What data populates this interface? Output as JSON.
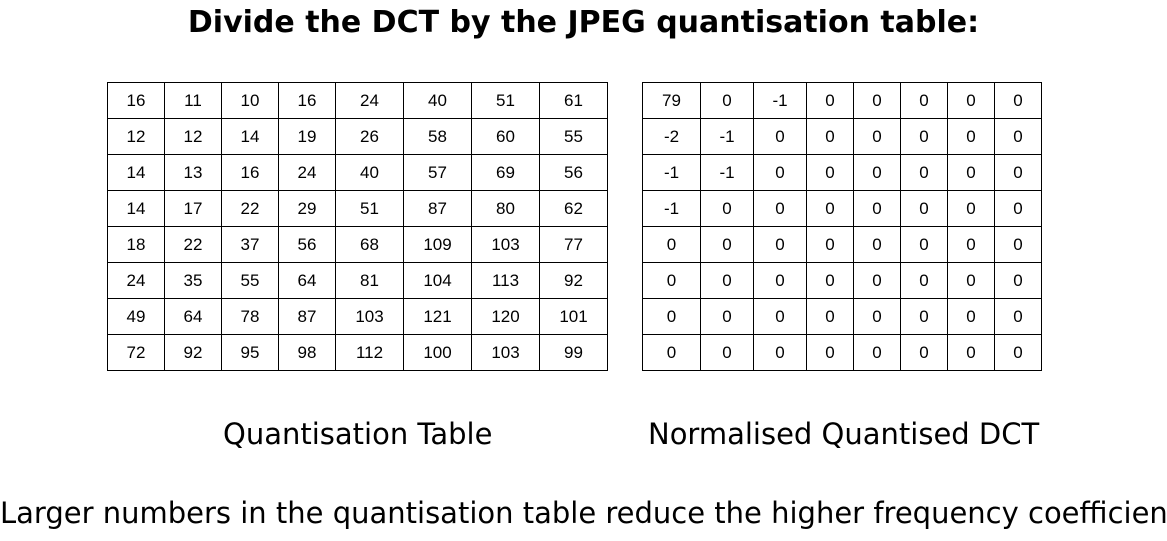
{
  "title": "Divide the DCT by the JPEG quantisation table:",
  "quantisation_table": {
    "caption": "Quantisation Table",
    "rows": [
      [
        "16",
        "11",
        "10",
        "16",
        "24",
        "40",
        "51",
        "61"
      ],
      [
        "12",
        "12",
        "14",
        "19",
        "26",
        "58",
        "60",
        "55"
      ],
      [
        "14",
        "13",
        "16",
        "24",
        "40",
        "57",
        "69",
        "56"
      ],
      [
        "14",
        "17",
        "22",
        "29",
        "51",
        "87",
        "80",
        "62"
      ],
      [
        "18",
        "22",
        "37",
        "56",
        "68",
        "109",
        "103",
        "77"
      ],
      [
        "24",
        "35",
        "55",
        "64",
        "81",
        "104",
        "113",
        "92"
      ],
      [
        "49",
        "64",
        "78",
        "87",
        "103",
        "121",
        "120",
        "101"
      ],
      [
        "72",
        "92",
        "95",
        "98",
        "112",
        "100",
        "103",
        "99"
      ]
    ]
  },
  "normalised_dct": {
    "caption": "Normalised Quantised DCT",
    "rows": [
      [
        "79",
        "0",
        "-1",
        "0",
        "0",
        "0",
        "0",
        "0"
      ],
      [
        "-2",
        "-1",
        "0",
        "0",
        "0",
        "0",
        "0",
        "0"
      ],
      [
        "-1",
        "-1",
        "0",
        "0",
        "0",
        "0",
        "0",
        "0"
      ],
      [
        "-1",
        "0",
        "0",
        "0",
        "0",
        "0",
        "0",
        "0"
      ],
      [
        "0",
        "0",
        "0",
        "0",
        "0",
        "0",
        "0",
        "0"
      ],
      [
        "0",
        "0",
        "0",
        "0",
        "0",
        "0",
        "0",
        "0"
      ],
      [
        "0",
        "0",
        "0",
        "0",
        "0",
        "0",
        "0",
        "0"
      ],
      [
        "0",
        "0",
        "0",
        "0",
        "0",
        "0",
        "0",
        "0"
      ]
    ]
  },
  "footer": "Larger numbers in the quantisation table reduce the higher frequency coefficients"
}
